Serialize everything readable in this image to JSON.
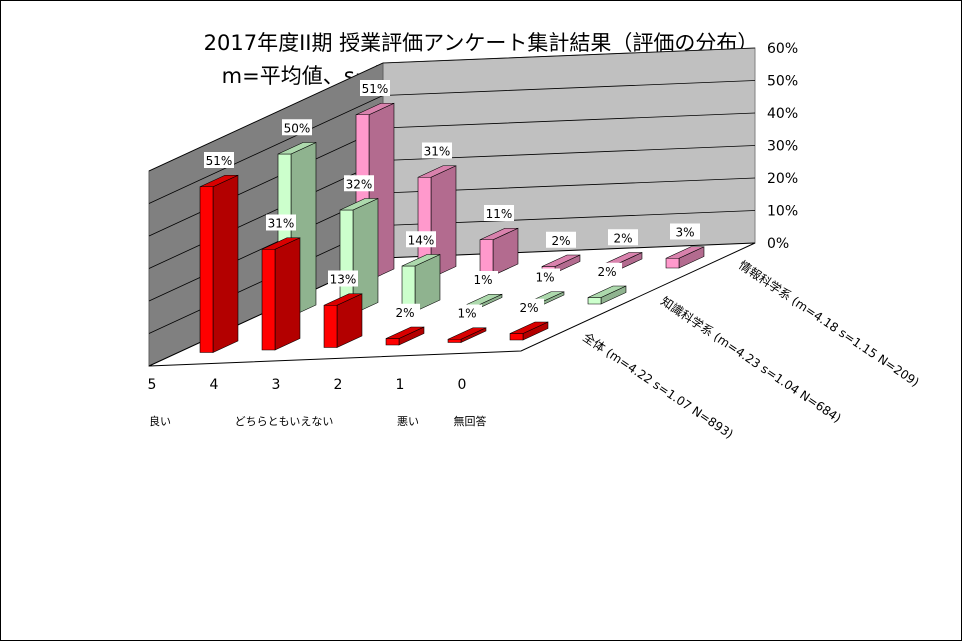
{
  "chart_data": {
    "type": "bar",
    "title": "2017年度II期 授業評価アンケート集計結果（評価の分布）",
    "subtitle": "m=平均値、s=標準偏差、N=回答数－科目グループ別",
    "categories": [
      "5",
      "4",
      "3",
      "2",
      "1",
      "0"
    ],
    "category_descriptions": [
      "良い",
      "",
      "どちらともいえない",
      "",
      "悪い",
      "無回答"
    ],
    "y_ticks": [
      "0%",
      "10%",
      "20%",
      "30%",
      "40%",
      "50%",
      "60%"
    ],
    "ylim": [
      0,
      60
    ],
    "grid": true,
    "series": [
      {
        "name": "全体 (m=4.22 s=1.07 N=893)",
        "values": [
          51,
          31,
          13,
          2,
          1,
          2
        ],
        "labels": [
          "51%",
          "31%",
          "13%",
          "2%",
          "1%",
          "2%"
        ],
        "color": "#ff0000"
      },
      {
        "name": "知識科学系 (m=4.23 s=1.04 N=684)",
        "values": [
          50,
          32,
          14,
          1,
          1,
          2
        ],
        "labels": [
          "50%",
          "32%",
          "14%",
          "1%",
          "1%",
          "2%"
        ],
        "color": "#ccffcc"
      },
      {
        "name": "情報科学系 (m=4.18 s=1.15 N=209)",
        "values": [
          51,
          31,
          11,
          2,
          2,
          3
        ],
        "labels": [
          "51%",
          "31%",
          "11%",
          "2%",
          "2%",
          "3%"
        ],
        "color": "#ff99cc"
      }
    ]
  }
}
